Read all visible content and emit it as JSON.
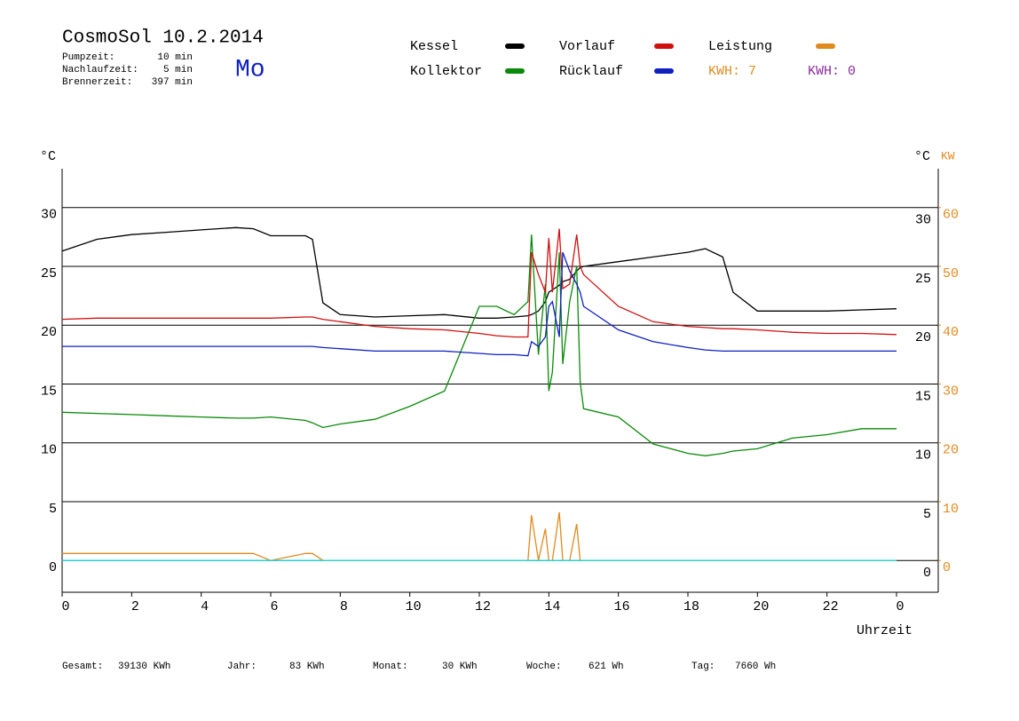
{
  "chart_data": {
    "type": "line",
    "title": "CosmoSol 10.2.2014",
    "info": [
      {
        "label": "Pumpzeit:",
        "value": "10 min"
      },
      {
        "label": "Nachlaufzeit:",
        "value": "5 min"
      },
      {
        "label": "Brennerzeit:",
        "value": "397 min"
      }
    ],
    "weekday": "Mo",
    "y_unit": "°C",
    "y2_unit": "KW",
    "x_label": "Uhrzeit",
    "kwh_labels": [
      {
        "text": "KWH: 7",
        "color": "#e08a1e"
      },
      {
        "text": "KWH: 0",
        "color": "#8a2b9a"
      }
    ],
    "footer": [
      {
        "label": "Gesamt:",
        "value": "39130 KWh"
      },
      {
        "label": "Jahr:",
        "value": "83 KWh"
      },
      {
        "label": "Monat:",
        "value": "30 KWh"
      },
      {
        "label": "Woche:",
        "value": "621 Wh"
      },
      {
        "label": "Tag:",
        "value": "7660 Wh"
      }
    ],
    "x": [
      0,
      1,
      2,
      3,
      4,
      5,
      5.5,
      6,
      7,
      7.2,
      7.5,
      8,
      9,
      10,
      11,
      12,
      12.5,
      13,
      13.4,
      13.5,
      13.7,
      13.9,
      14,
      14.1,
      14.3,
      14.4,
      14.6,
      14.8,
      14.9,
      15,
      16,
      17,
      18,
      18.5,
      19,
      19.3,
      20,
      21,
      22,
      23,
      24
    ],
    "xlim": [
      0,
      25.2
    ],
    "xticks": [
      0,
      2,
      4,
      6,
      8,
      10,
      12,
      14,
      16,
      18,
      20,
      22,
      {
        "value": 24,
        "label": "0"
      }
    ],
    "ylim": [
      -2.7,
      33.3
    ],
    "yticks": [
      0,
      5,
      10,
      15,
      20,
      25,
      30
    ],
    "y2lim": [
      -5.4,
      66.6
    ],
    "y2ticks": [
      0,
      10,
      20,
      30,
      40,
      50,
      60
    ],
    "grid": true,
    "series": [
      {
        "name": "Kessel",
        "color": "#000000",
        "values": [
          26.3,
          27.3,
          27.7,
          27.9,
          28.1,
          28.3,
          28.2,
          27.6,
          27.6,
          27.3,
          21.9,
          20.9,
          20.7,
          20.8,
          20.9,
          20.6,
          20.6,
          20.7,
          20.8,
          20.9,
          21.2,
          22,
          22.8,
          23,
          23.4,
          23.7,
          23.9,
          24.6,
          24.9,
          25,
          25.4,
          25.8,
          26.2,
          26.5,
          25.8,
          22.8,
          21.2,
          21.2,
          21.2,
          21.3,
          21.4
        ]
      },
      {
        "name": "Kollektor",
        "color": "#0a8a0a",
        "values": [
          12.6,
          12.5,
          12.4,
          12.3,
          12.2,
          12.1,
          12.1,
          12.2,
          11.9,
          11.7,
          11.3,
          11.6,
          12,
          13.1,
          14.4,
          21.6,
          21.6,
          20.9,
          22,
          27.7,
          17.5,
          23.5,
          14.4,
          16,
          26.2,
          16.7,
          22,
          25,
          15.2,
          12.9,
          12.2,
          9.9,
          9.1,
          8.9,
          9.1,
          9.3,
          9.5,
          10.4,
          10.7,
          11.2,
          11.2
        ]
      },
      {
        "name": "Vorlauf",
        "color": "#d01010",
        "values": [
          20.5,
          20.6,
          20.6,
          20.6,
          20.6,
          20.6,
          20.6,
          20.6,
          20.7,
          20.7,
          20.5,
          20.3,
          19.9,
          19.7,
          19.6,
          19.3,
          19.1,
          19,
          19,
          26.2,
          24.3,
          22.8,
          27.4,
          22.8,
          28.2,
          23.1,
          23.5,
          27.7,
          25,
          24.3,
          21.6,
          20.3,
          19.9,
          19.8,
          19.7,
          19.7,
          19.6,
          19.4,
          19.3,
          19.3,
          19.2
        ]
      },
      {
        "name": "Rücklauf",
        "color": "#1020c0",
        "values": [
          18.2,
          18.2,
          18.2,
          18.2,
          18.2,
          18.2,
          18.2,
          18.2,
          18.2,
          18.2,
          18.1,
          18,
          17.8,
          17.8,
          17.8,
          17.6,
          17.5,
          17.5,
          17.4,
          18.6,
          18.2,
          19,
          21.6,
          22,
          19,
          26.2,
          24.6,
          23.5,
          22.8,
          21.6,
          19.6,
          18.6,
          18.1,
          17.9,
          17.8,
          17.8,
          17.8,
          17.8,
          17.8,
          17.8,
          17.8
        ]
      },
      {
        "name": "Leistung",
        "color": "#e08a1e",
        "axis": "y2",
        "values": [
          1.2,
          1.2,
          1.2,
          1.2,
          1.2,
          1.2,
          1.2,
          0,
          1.2,
          1.2,
          0,
          0,
          0,
          0,
          0,
          0,
          0,
          0,
          0,
          7.7,
          0,
          5.4,
          0,
          0,
          8.2,
          0,
          0,
          6.2,
          0,
          0,
          0,
          0,
          0,
          0,
          0,
          0,
          0,
          0,
          0,
          0,
          0
        ]
      },
      {
        "color": "#20d8d8",
        "values": [
          0,
          0,
          0,
          0,
          0,
          0,
          0,
          0,
          0,
          0,
          0,
          0,
          0,
          0,
          0,
          0,
          0,
          0,
          0,
          0,
          0,
          0,
          0,
          0,
          0,
          0,
          0,
          0,
          0,
          0,
          0,
          0,
          0,
          0,
          0,
          0,
          0,
          0,
          0,
          0,
          0
        ]
      }
    ]
  }
}
